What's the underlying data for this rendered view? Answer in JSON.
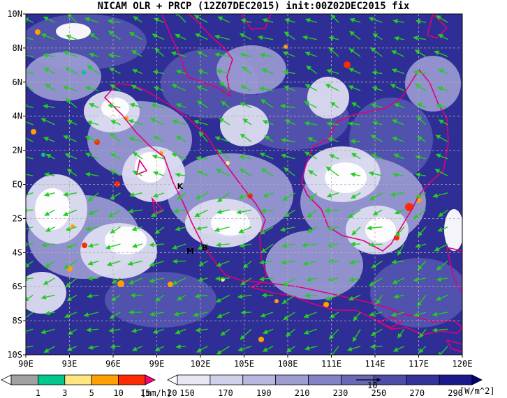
{
  "title": "NICAM OLR + PRCP (12Z07DEC2015) init:00Z02DEC2015 fix",
  "chart_data": {
    "type": "heatmap",
    "lon_labels": [
      "90E",
      "93E",
      "96E",
      "99E",
      "102E",
      "105E",
      "108E",
      "111E",
      "114E",
      "117E",
      "120E"
    ],
    "lat_labels": [
      "10N",
      "8N",
      "6N",
      "4N",
      "2N",
      "EQ",
      "2S",
      "4S",
      "6S",
      "8S",
      "10S"
    ],
    "xlim": [
      90,
      120
    ],
    "ylim": [
      -10,
      10
    ],
    "grid": true,
    "place_labels": [
      {
        "text": "K",
        "lon": 100.6,
        "lat": -0.1
      },
      {
        "text": "M",
        "lon": 101.3,
        "lat": -3.9
      },
      {
        "text": "B",
        "lon": 102.3,
        "lat": -3.7
      }
    ],
    "prcp_colorbar": {
      "levels": [
        "1",
        "3",
        "5",
        "10",
        "15",
        "20"
      ],
      "unit": "[mm/h]",
      "colors": [
        "#ffffff",
        "#a0a0a0",
        "#00c78c",
        "#ffe680",
        "#ff9f00",
        "#ff2a00",
        "#ff0080"
      ]
    },
    "olr_colorbar": {
      "levels": [
        "150",
        "170",
        "190",
        "210",
        "230",
        "250",
        "270",
        "290"
      ],
      "unit": "[W/m^2]",
      "colors": [
        "#ffffff",
        "#e8e8f5",
        "#d0d0ea",
        "#b8b8df",
        "#9d9dd2",
        "#8282c4",
        "#6868b6",
        "#4d4da8",
        "#33339a",
        "#1a1a8c",
        "#00007e"
      ]
    },
    "wind_reference": {
      "label": "10"
    }
  }
}
